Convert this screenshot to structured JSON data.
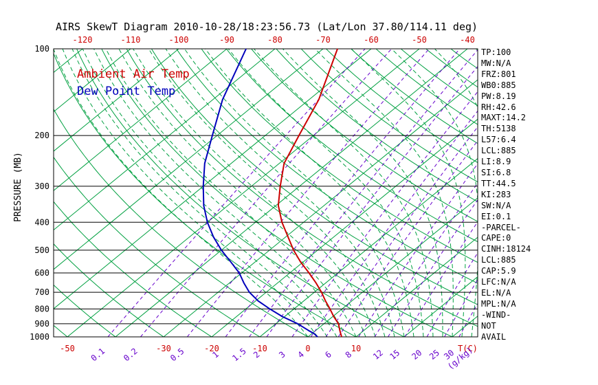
{
  "title": "AIRS SkewT Diagram 2010-10-28/18:23:56.73 (Lat/Lon 37.80/114.11 deg)",
  "colors": {
    "background_lines_green": "#00a040",
    "mixing_ratio_purple": "#6600cc",
    "temp_red": "#cc0000",
    "dew_blue": "#0000bb",
    "axis_black": "#000000",
    "page_background": "#ffffff"
  },
  "legend": {
    "air_temp": "Ambient Air Temp",
    "dew_point": "Dew Point Temp"
  },
  "stats": [
    "TP:100",
    "MW:N/A",
    "FRZ:801",
    "WB0:885",
    "PW:8.19",
    "RH:42.6",
    "MAXT:14.2",
    "TH:5138",
    "L57:6.4",
    "LCL:885",
    "LI:8.9",
    "SI:6.8",
    "TT:44.5",
    "KI:283",
    "SW:N/A",
    "EI:0.1",
    "-PARCEL-",
    "CAPE:0",
    "CINH:18124",
    "LCL:885",
    "CAP:5.9",
    "LFC:N/A",
    "EL:N/A",
    "MPL:N/A",
    "-WIND-",
    "NOT",
    "AVAIL"
  ],
  "chart_data": {
    "type": "line",
    "subtype": "skew-t-log-p",
    "title": "AIRS SkewT Diagram 2010-10-28/18:23:56.73 (Lat/Lon 37.80/114.11 deg)",
    "y_axis_label": "PRESSURE (MB)",
    "pressure_scale": "log",
    "pressure_range": [
      100,
      1000
    ],
    "pressure_levels": [
      100,
      200,
      300,
      400,
      500,
      600,
      700,
      800,
      900,
      1000
    ],
    "top_axis_ticks": [
      -120,
      -110,
      -100,
      -90,
      -80,
      -70,
      -60,
      -50,
      -40
    ],
    "bottom_temp_ticks": [
      -50,
      -30,
      -20,
      -10,
      0,
      10
    ],
    "bottom_temp_range": [
      -52.9,
      35.3
    ],
    "temp_unit": "T(C)",
    "mixing_unit": "(g/kg)",
    "mixing_ratio_lines": [
      0.1,
      0.2,
      0.5,
      1,
      1.5,
      2,
      3,
      4,
      5,
      6,
      8,
      10,
      12,
      15,
      20,
      25,
      30
    ],
    "mixing_ratio_labels": [
      0.1,
      0.2,
      0.5,
      1,
      1.5,
      2,
      3,
      4,
      6,
      8,
      12,
      15,
      20,
      25,
      30
    ],
    "isotherms": {
      "min": -160,
      "max": 40,
      "step": 10
    },
    "dry_adiabats": {
      "min": -50,
      "max": 180,
      "step": 10
    },
    "moist_adiabats": {
      "min": 0,
      "max": 40,
      "step": 2
    },
    "legend_position": "top-left-inside",
    "grid": "skew-t background lines on",
    "series": [
      {
        "name": "Ambient Air Temp",
        "color": "#cc0000",
        "points": [
          [
            1000,
            7
          ],
          [
            950,
            5
          ],
          [
            900,
            3
          ],
          [
            850,
            0.2
          ],
          [
            800,
            -2.5
          ],
          [
            750,
            -5.5
          ],
          [
            700,
            -8.5
          ],
          [
            650,
            -12
          ],
          [
            600,
            -16
          ],
          [
            550,
            -20.5
          ],
          [
            500,
            -25
          ],
          [
            450,
            -29.5
          ],
          [
            400,
            -34.5
          ],
          [
            350,
            -39.5
          ],
          [
            300,
            -44
          ],
          [
            250,
            -49
          ],
          [
            200,
            -53
          ],
          [
            150,
            -58
          ],
          [
            100,
            -67
          ]
        ]
      },
      {
        "name": "Dew Point Temp",
        "color": "#0000bb",
        "points": [
          [
            1000,
            2
          ],
          [
            975,
            0.5
          ],
          [
            950,
            -1.5
          ],
          [
            900,
            -5.5
          ],
          [
            850,
            -10.5
          ],
          [
            800,
            -15
          ],
          [
            750,
            -19.5
          ],
          [
            700,
            -23.5
          ],
          [
            650,
            -27
          ],
          [
            600,
            -30.5
          ],
          [
            550,
            -35
          ],
          [
            500,
            -40
          ],
          [
            450,
            -45
          ],
          [
            400,
            -50
          ],
          [
            350,
            -55
          ],
          [
            300,
            -60
          ],
          [
            250,
            -65.5
          ],
          [
            200,
            -71
          ],
          [
            150,
            -78
          ],
          [
            100,
            -86
          ]
        ]
      }
    ]
  }
}
